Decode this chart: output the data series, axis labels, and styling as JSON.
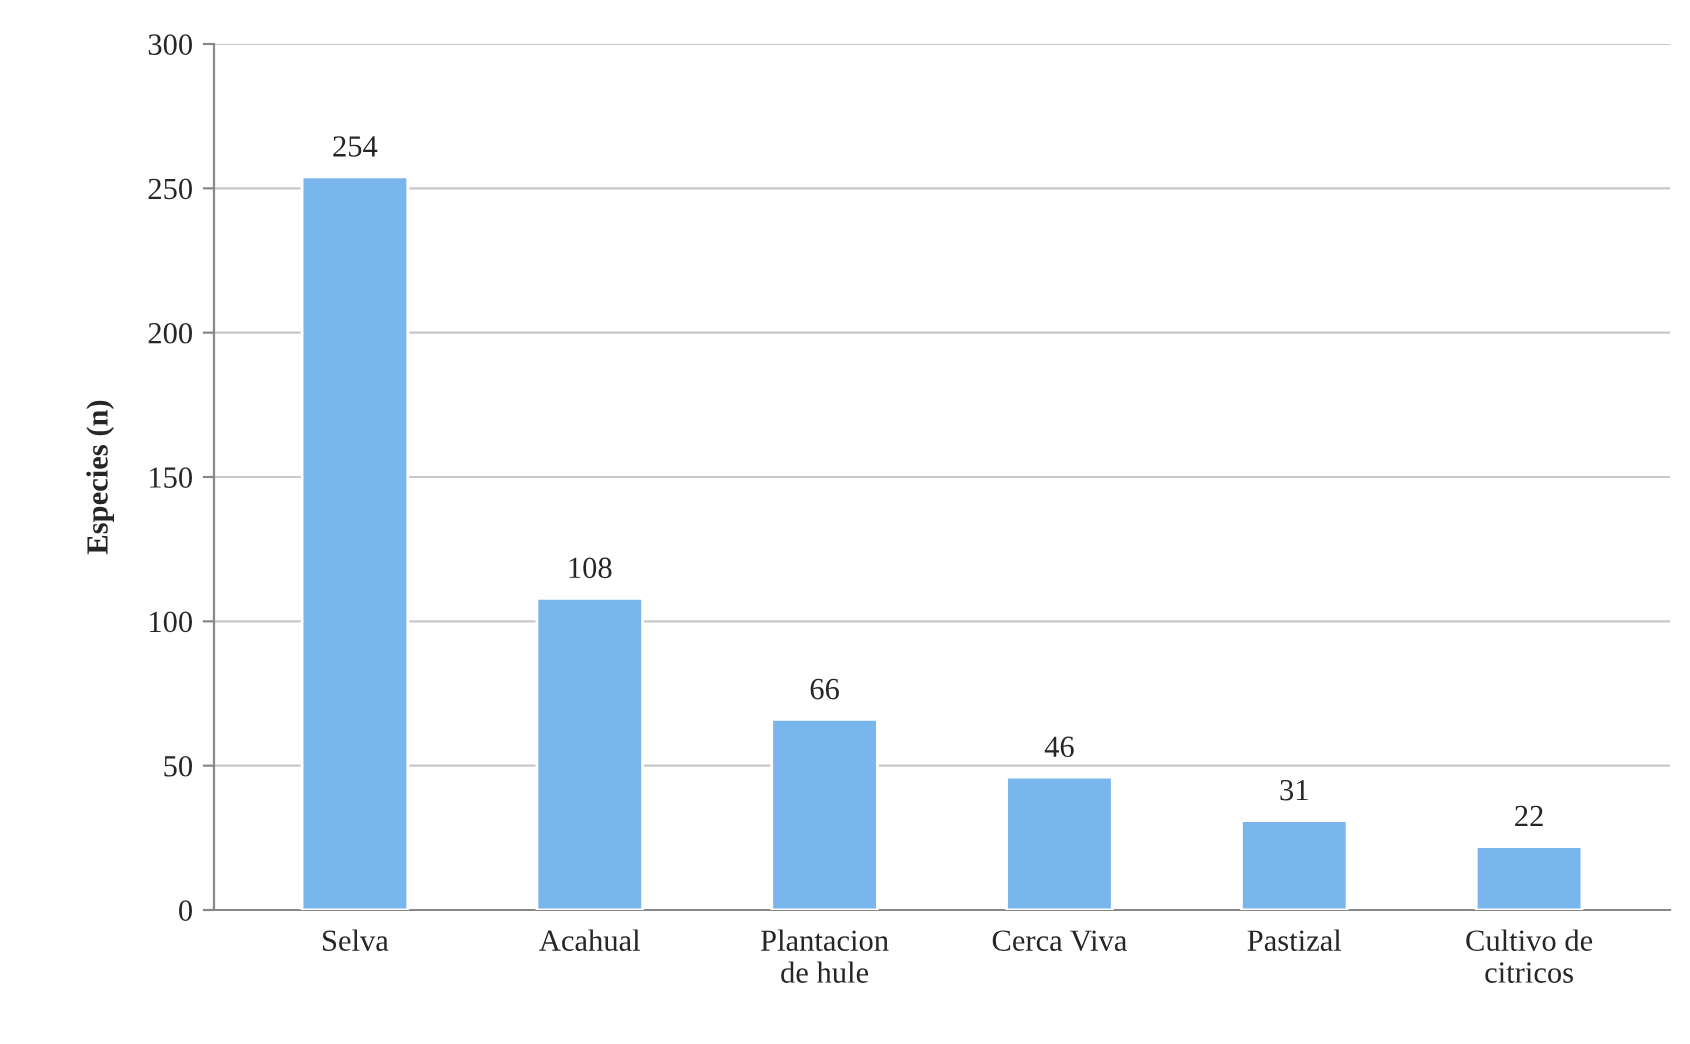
{
  "chart_data": {
    "type": "bar",
    "ylabel": "Especies (n)",
    "categories": [
      "Selva",
      "Acahual",
      "Plantacion\nde hule",
      "Cerca Viva",
      "Pastizal",
      "Cultivo de\ncitricos"
    ],
    "values": [
      254,
      108,
      66,
      46,
      31,
      22
    ],
    "color": "#7ab6ee",
    "ylim": [
      0,
      300
    ],
    "yticks": [
      0,
      50,
      100,
      150,
      200,
      250,
      300
    ],
    "grid": "y",
    "data_labels": true
  }
}
